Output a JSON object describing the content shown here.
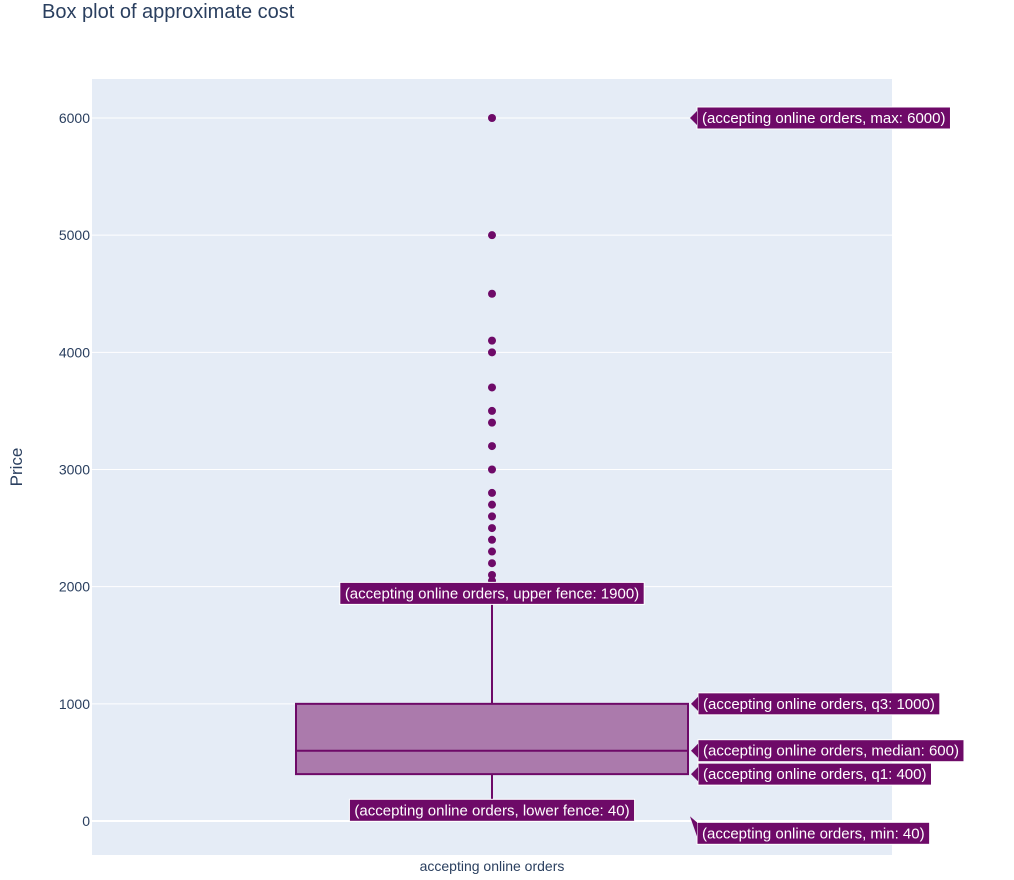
{
  "chart_data": {
    "type": "box",
    "title": "Box plot of approximate cost",
    "ylabel": "Price",
    "xlabel": "",
    "category": "accepting online orders",
    "y_ticks": [
      0,
      1000,
      2000,
      3000,
      4000,
      5000,
      6000
    ],
    "ylim": [
      -290,
      6330
    ],
    "stats": {
      "min": 40,
      "lower_fence": 40,
      "q1": 400,
      "median": 600,
      "q3": 1000,
      "upper_fence": 1900,
      "max": 6000
    },
    "outliers": [
      2000,
      2050,
      2100,
      2200,
      2300,
      2400,
      2500,
      2600,
      2700,
      2800,
      3000,
      3200,
      3400,
      3500,
      3700,
      4000,
      4100,
      4500,
      5000,
      6000
    ],
    "hover_labels": {
      "max": "(accepting online orders, max: 6000)",
      "upper_fence": "(accepting online orders, upper fence: 1900)",
      "q3": "(accepting online orders, q3: 1000)",
      "median": "(accepting online orders, median: 600)",
      "q1": "(accepting online orders, q1: 400)",
      "lower_fence": "(accepting online orders, lower fence: 40)",
      "min": "(accepting online orders, min: 40)"
    },
    "colors": {
      "marker": "#6e0a68",
      "box_fill": "#ab7aac",
      "plot_bg": "#e5ecf6",
      "grid": "#ffffff",
      "text": "#2a3f5f"
    }
  }
}
